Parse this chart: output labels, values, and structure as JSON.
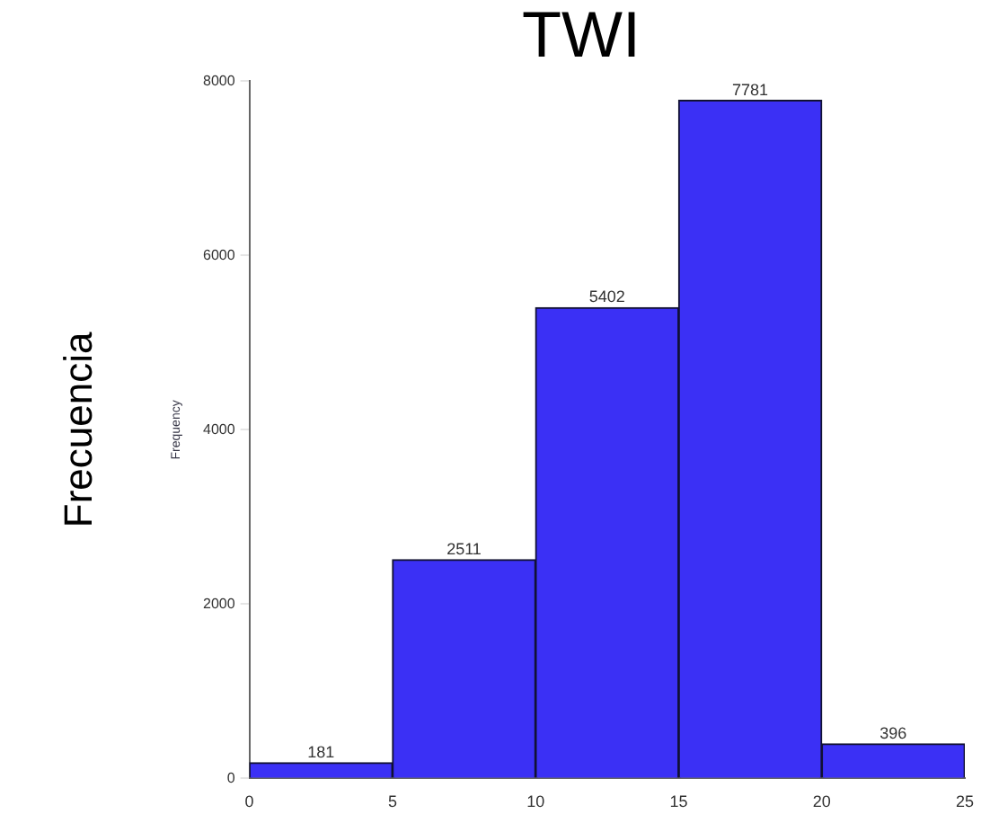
{
  "chart_data": {
    "type": "histogram",
    "title": "TWI",
    "ylabel": "Frecuencia",
    "annotations": [
      "Frequency"
    ],
    "bins": [
      0,
      5,
      10,
      15,
      20,
      25
    ],
    "values": [
      181,
      2511,
      5402,
      7781,
      396
    ],
    "color": "#3b30f5",
    "xlim": [
      0,
      25
    ],
    "xticks": [
      0,
      5,
      10,
      15,
      20,
      25
    ],
    "ylim": [
      0,
      8000
    ],
    "yticks": [
      0,
      2000,
      4000,
      6000,
      8000
    ],
    "data_labels": true,
    "grid": false,
    "legend": false
  }
}
